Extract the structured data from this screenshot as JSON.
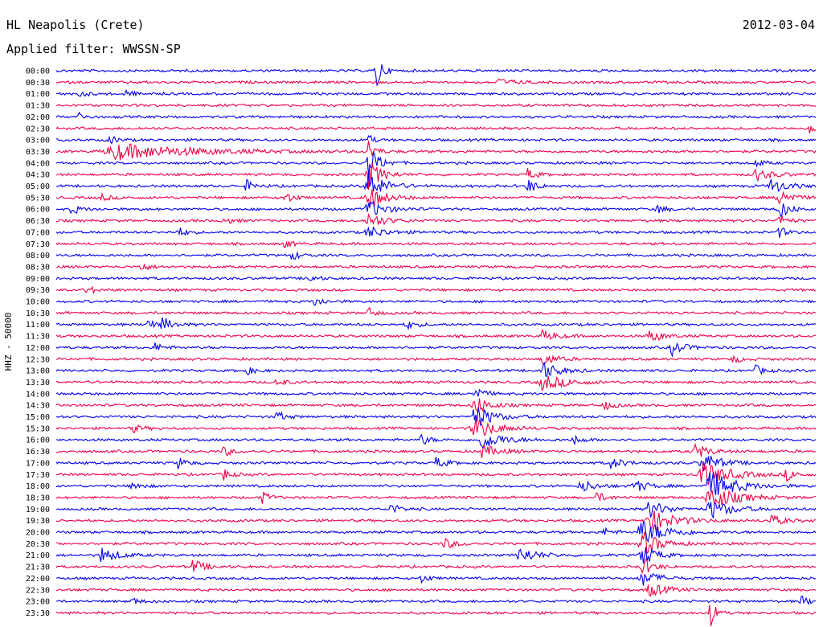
{
  "header": {
    "station": "HL Neapolis (Crete)",
    "date": "2012-03-04",
    "filter": "Applied filter: WWSSN-SP"
  },
  "chart_data": {
    "type": "line",
    "title": "HL Neapolis (Crete)",
    "subtitle": "Applied filter: WWSSN-SP",
    "date": "2012-03-04",
    "ylabel": "HHZ - 50000",
    "row_labels": [
      "00:00",
      "00:30",
      "01:00",
      "01:30",
      "02:00",
      "02:30",
      "03:00",
      "03:30",
      "04:00",
      "04:30",
      "05:00",
      "05:30",
      "06:00",
      "06:30",
      "07:00",
      "07:30",
      "08:00",
      "08:30",
      "09:00",
      "09:30",
      "10:00",
      "10:30",
      "11:00",
      "11:30",
      "12:00",
      "12:30",
      "13:00",
      "13:30",
      "14:00",
      "14:30",
      "15:00",
      "15:30",
      "16:00",
      "16:30",
      "17:00",
      "17:30",
      "18:00",
      "18:30",
      "19:00",
      "19:30",
      "20:00",
      "20:30",
      "21:00",
      "21:30",
      "22:00",
      "22:30",
      "23:00",
      "23:30"
    ],
    "series_colors": [
      "#0000ee",
      "#ee0044"
    ],
    "grid": false,
    "events": [
      {
        "row": 0,
        "pos": 0.42,
        "amp": 5.0,
        "dur": 0.006
      },
      {
        "row": 1,
        "pos": 0.58,
        "amp": 0.6,
        "dur": 0.02
      },
      {
        "row": 2,
        "pos": 0.03,
        "amp": 0.5,
        "dur": 0.01
      },
      {
        "row": 2,
        "pos": 0.09,
        "amp": 0.6,
        "dur": 0.01
      },
      {
        "row": 4,
        "pos": 0.03,
        "amp": 0.7,
        "dur": 0.008
      },
      {
        "row": 5,
        "pos": 0.99,
        "amp": 1.2,
        "dur": 0.008
      },
      {
        "row": 6,
        "pos": 0.07,
        "amp": 0.7,
        "dur": 0.01
      },
      {
        "row": 7,
        "pos": 0.08,
        "amp": 1.4,
        "dur": 0.09
      },
      {
        "row": 6,
        "pos": 0.41,
        "amp": 1.2,
        "dur": 0.006
      },
      {
        "row": 7,
        "pos": 0.41,
        "amp": 2.2,
        "dur": 0.008
      },
      {
        "row": 8,
        "pos": 0.41,
        "amp": 3.2,
        "dur": 0.012
      },
      {
        "row": 9,
        "pos": 0.41,
        "amp": 2.8,
        "dur": 0.015
      },
      {
        "row": 10,
        "pos": 0.41,
        "amp": 2.5,
        "dur": 0.02
      },
      {
        "row": 11,
        "pos": 0.41,
        "amp": 2.0,
        "dur": 0.02
      },
      {
        "row": 12,
        "pos": 0.41,
        "amp": 1.6,
        "dur": 0.02
      },
      {
        "row": 13,
        "pos": 0.41,
        "amp": 1.3,
        "dur": 0.02
      },
      {
        "row": 14,
        "pos": 0.41,
        "amp": 1.1,
        "dur": 0.02
      },
      {
        "row": 8,
        "pos": 0.92,
        "amp": 0.7,
        "dur": 0.01
      },
      {
        "row": 9,
        "pos": 0.92,
        "amp": 1.0,
        "dur": 0.02
      },
      {
        "row": 10,
        "pos": 0.94,
        "amp": 1.3,
        "dur": 0.02
      },
      {
        "row": 11,
        "pos": 0.95,
        "amp": 1.6,
        "dur": 0.015
      },
      {
        "row": 12,
        "pos": 0.95,
        "amp": 1.8,
        "dur": 0.012
      },
      {
        "row": 13,
        "pos": 0.95,
        "amp": 1.2,
        "dur": 0.01
      },
      {
        "row": 14,
        "pos": 0.95,
        "amp": 1.0,
        "dur": 0.01
      },
      {
        "row": 9,
        "pos": 0.62,
        "amp": 1.0,
        "dur": 0.01
      },
      {
        "row": 10,
        "pos": 0.62,
        "amp": 1.4,
        "dur": 0.01
      },
      {
        "row": 10,
        "pos": 0.25,
        "amp": 1.0,
        "dur": 0.01
      },
      {
        "row": 11,
        "pos": 0.3,
        "amp": 1.1,
        "dur": 0.01
      },
      {
        "row": 11,
        "pos": 0.06,
        "amp": 0.6,
        "dur": 0.01
      },
      {
        "row": 12,
        "pos": 0.02,
        "amp": 0.9,
        "dur": 0.01
      },
      {
        "row": 12,
        "pos": 0.79,
        "amp": 0.8,
        "dur": 0.01
      },
      {
        "row": 13,
        "pos": 0.22,
        "amp": 0.8,
        "dur": 0.01
      },
      {
        "row": 14,
        "pos": 0.16,
        "amp": 0.9,
        "dur": 0.01
      },
      {
        "row": 15,
        "pos": 0.3,
        "amp": 0.7,
        "dur": 0.01
      },
      {
        "row": 16,
        "pos": 0.31,
        "amp": 0.8,
        "dur": 0.01
      },
      {
        "row": 17,
        "pos": 0.11,
        "amp": 0.8,
        "dur": 0.01
      },
      {
        "row": 18,
        "pos": 0.33,
        "amp": 0.8,
        "dur": 0.01
      },
      {
        "row": 19,
        "pos": 0.04,
        "amp": 0.8,
        "dur": 0.01
      },
      {
        "row": 20,
        "pos": 0.34,
        "amp": 0.9,
        "dur": 0.01
      },
      {
        "row": 21,
        "pos": 0.41,
        "amp": 0.9,
        "dur": 0.01
      },
      {
        "row": 22,
        "pos": 0.12,
        "amp": 1.0,
        "dur": 0.012
      },
      {
        "row": 22,
        "pos": 0.14,
        "amp": 1.1,
        "dur": 0.012
      },
      {
        "row": 22,
        "pos": 0.46,
        "amp": 0.8,
        "dur": 0.012
      },
      {
        "row": 23,
        "pos": 0.64,
        "amp": 1.0,
        "dur": 0.015
      },
      {
        "row": 23,
        "pos": 0.78,
        "amp": 1.2,
        "dur": 0.015
      },
      {
        "row": 24,
        "pos": 0.13,
        "amp": 0.8,
        "dur": 0.01
      },
      {
        "row": 24,
        "pos": 0.81,
        "amp": 1.3,
        "dur": 0.015
      },
      {
        "row": 25,
        "pos": 0.64,
        "amp": 1.2,
        "dur": 0.015
      },
      {
        "row": 26,
        "pos": 0.64,
        "amp": 1.5,
        "dur": 0.02
      },
      {
        "row": 27,
        "pos": 0.64,
        "amp": 1.3,
        "dur": 0.03
      },
      {
        "row": 25,
        "pos": 0.89,
        "amp": 0.7,
        "dur": 0.01
      },
      {
        "row": 26,
        "pos": 0.25,
        "amp": 0.7,
        "dur": 0.01
      },
      {
        "row": 26,
        "pos": 0.92,
        "amp": 0.9,
        "dur": 0.01
      },
      {
        "row": 27,
        "pos": 0.29,
        "amp": 0.7,
        "dur": 0.01
      },
      {
        "row": 28,
        "pos": 0.55,
        "amp": 1.5,
        "dur": 0.01
      },
      {
        "row": 29,
        "pos": 0.55,
        "amp": 2.0,
        "dur": 0.015
      },
      {
        "row": 30,
        "pos": 0.55,
        "amp": 2.3,
        "dur": 0.02
      },
      {
        "row": 31,
        "pos": 0.55,
        "amp": 2.0,
        "dur": 0.025
      },
      {
        "row": 32,
        "pos": 0.56,
        "amp": 1.6,
        "dur": 0.025
      },
      {
        "row": 33,
        "pos": 0.56,
        "amp": 1.1,
        "dur": 0.02
      },
      {
        "row": 29,
        "pos": 0.72,
        "amp": 0.9,
        "dur": 0.01
      },
      {
        "row": 30,
        "pos": 0.29,
        "amp": 1.0,
        "dur": 0.01
      },
      {
        "row": 31,
        "pos": 0.1,
        "amp": 0.8,
        "dur": 0.01
      },
      {
        "row": 32,
        "pos": 0.48,
        "amp": 1.0,
        "dur": 0.01
      },
      {
        "row": 32,
        "pos": 0.68,
        "amp": 0.9,
        "dur": 0.01
      },
      {
        "row": 33,
        "pos": 0.22,
        "amp": 0.9,
        "dur": 0.01
      },
      {
        "row": 33,
        "pos": 0.84,
        "amp": 1.4,
        "dur": 0.015
      },
      {
        "row": 34,
        "pos": 0.16,
        "amp": 1.0,
        "dur": 0.01
      },
      {
        "row": 34,
        "pos": 0.5,
        "amp": 1.0,
        "dur": 0.012
      },
      {
        "row": 34,
        "pos": 0.73,
        "amp": 1.0,
        "dur": 0.015
      },
      {
        "row": 34,
        "pos": 0.85,
        "amp": 2.0,
        "dur": 0.02
      },
      {
        "row": 35,
        "pos": 0.85,
        "amp": 2.4,
        "dur": 0.03
      },
      {
        "row": 36,
        "pos": 0.86,
        "amp": 2.6,
        "dur": 0.03
      },
      {
        "row": 37,
        "pos": 0.86,
        "amp": 2.2,
        "dur": 0.03
      },
      {
        "row": 38,
        "pos": 0.86,
        "amp": 1.7,
        "dur": 0.025
      },
      {
        "row": 35,
        "pos": 0.22,
        "amp": 1.0,
        "dur": 0.01
      },
      {
        "row": 35,
        "pos": 0.96,
        "amp": 1.0,
        "dur": 0.012
      },
      {
        "row": 36,
        "pos": 0.1,
        "amp": 0.9,
        "dur": 0.01
      },
      {
        "row": 36,
        "pos": 0.69,
        "amp": 1.2,
        "dur": 0.015
      },
      {
        "row": 36,
        "pos": 0.76,
        "amp": 1.2,
        "dur": 0.015
      },
      {
        "row": 37,
        "pos": 0.27,
        "amp": 1.1,
        "dur": 0.01
      },
      {
        "row": 37,
        "pos": 0.71,
        "amp": 0.9,
        "dur": 0.012
      },
      {
        "row": 38,
        "pos": 0.44,
        "amp": 0.9,
        "dur": 0.012
      },
      {
        "row": 38,
        "pos": 0.78,
        "amp": 1.5,
        "dur": 0.02
      },
      {
        "row": 39,
        "pos": 0.78,
        "amp": 2.0,
        "dur": 0.03
      },
      {
        "row": 40,
        "pos": 0.77,
        "amp": 2.2,
        "dur": 0.03
      },
      {
        "row": 41,
        "pos": 0.77,
        "amp": 2.4,
        "dur": 0.02
      },
      {
        "row": 42,
        "pos": 0.77,
        "amp": 2.2,
        "dur": 0.015
      },
      {
        "row": 43,
        "pos": 0.77,
        "amp": 1.8,
        "dur": 0.012
      },
      {
        "row": 44,
        "pos": 0.77,
        "amp": 1.4,
        "dur": 0.02
      },
      {
        "row": 39,
        "pos": 0.94,
        "amp": 1.0,
        "dur": 0.015
      },
      {
        "row": 40,
        "pos": 0.72,
        "amp": 0.8,
        "dur": 0.01
      },
      {
        "row": 41,
        "pos": 0.51,
        "amp": 0.9,
        "dur": 0.015
      },
      {
        "row": 42,
        "pos": 0.06,
        "amp": 1.3,
        "dur": 0.02
      },
      {
        "row": 42,
        "pos": 0.61,
        "amp": 1.4,
        "dur": 0.02
      },
      {
        "row": 43,
        "pos": 0.18,
        "amp": 1.2,
        "dur": 0.015
      },
      {
        "row": 44,
        "pos": 0.48,
        "amp": 0.7,
        "dur": 0.01
      },
      {
        "row": 45,
        "pos": 0.78,
        "amp": 1.2,
        "dur": 0.02
      },
      {
        "row": 46,
        "pos": 0.1,
        "amp": 0.6,
        "dur": 0.01
      },
      {
        "row": 46,
        "pos": 0.98,
        "amp": 0.9,
        "dur": 0.01
      },
      {
        "row": 47,
        "pos": 0.86,
        "amp": 3.0,
        "dur": 0.006
      }
    ]
  }
}
